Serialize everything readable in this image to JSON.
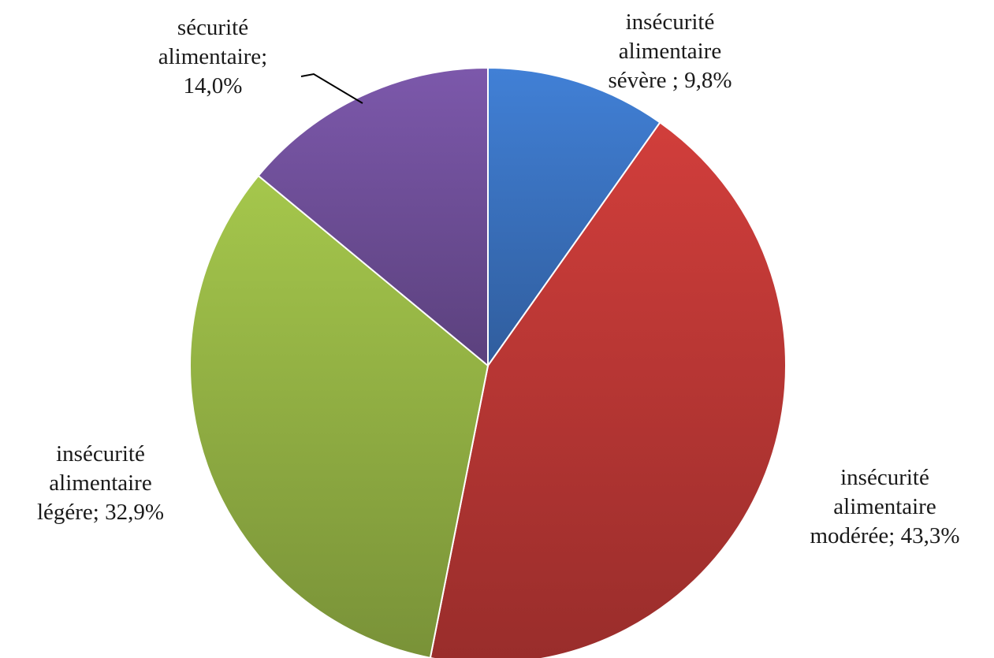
{
  "chart_data": {
    "type": "pie",
    "slices": [
      {
        "label_lines": [
          "insécurité",
          "alimentaire",
          "sévère ; 9,8%"
        ],
        "name": "insécurité alimentaire sévère",
        "value": 9.8,
        "color": "#3a72bf"
      },
      {
        "label_lines": [
          "insécurité",
          "alimentaire",
          "modérée; 43,3%"
        ],
        "name": "insécurité alimentaire modérée",
        "value": 43.3,
        "color": "#bb3735"
      },
      {
        "label_lines": [
          "insécurité",
          "alimentaire",
          "légére; 32,9%"
        ],
        "name": "insécurité alimentaire légére",
        "value": 32.9,
        "color": "#93b244"
      },
      {
        "label_lines": [
          "sécurité",
          "alimentaire;",
          "14,0%"
        ],
        "name": "sécurité alimentaire",
        "value": 14.0,
        "color": "#6f4f99"
      }
    ],
    "start_angle_deg": 0,
    "direction": "clockwise",
    "legend": "none"
  }
}
